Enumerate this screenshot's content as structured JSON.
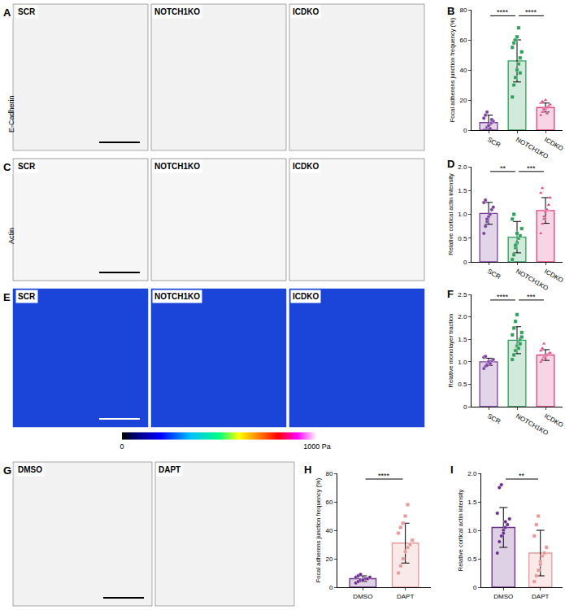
{
  "chart_data": [
    {
      "panel_label": "B",
      "type": "bar",
      "y_label": "Focal adherens junction frequency (%)",
      "categories": [
        "SCR",
        "NOTCH1KO",
        "ICDKO"
      ],
      "values": [
        5,
        46,
        15
      ],
      "errors": [
        5,
        14,
        3
      ],
      "points": [
        [
          0,
          0,
          2,
          3,
          4,
          5,
          6,
          8,
          10,
          12,
          3,
          1,
          7
        ],
        [
          22,
          30,
          35,
          40,
          44,
          48,
          52,
          55,
          58,
          60,
          62,
          68,
          38
        ],
        [
          10,
          12,
          13,
          14,
          15,
          16,
          17,
          18,
          19,
          14,
          20,
          11
        ]
      ],
      "colors": [
        "#7b3fa0",
        "#2e9e5b",
        "#e0407f"
      ],
      "ylim": [
        0,
        80
      ],
      "yticks": [
        0,
        20,
        40,
        60,
        80
      ],
      "comparisons": [
        {
          "from": 0,
          "to": 1,
          "label": "****"
        },
        {
          "from": 1,
          "to": 2,
          "label": "****"
        }
      ]
    },
    {
      "panel_label": "D",
      "type": "bar",
      "y_label": "Relative cortical actin intensity",
      "categories": [
        "SCR",
        "NOTCH1KO",
        "ICDKO"
      ],
      "values": [
        1.02,
        0.52,
        1.08
      ],
      "errors": [
        0.23,
        0.33,
        0.27
      ],
      "points": [
        [
          0.6,
          0.75,
          0.85,
          0.95,
          1.0,
          1.1,
          1.15,
          1.25,
          1.3,
          0.9
        ],
        [
          0.05,
          0.15,
          0.3,
          0.4,
          0.5,
          0.55,
          0.7,
          0.9,
          1.0,
          0.35,
          0.6
        ],
        [
          0.6,
          0.8,
          0.95,
          1.05,
          1.1,
          1.2,
          1.35,
          1.45,
          1.55,
          0.9
        ]
      ],
      "colors": [
        "#7b3fa0",
        "#2e9e5b",
        "#e0407f"
      ],
      "ylim": [
        0,
        2
      ],
      "yticks": [
        0,
        0.5,
        {
          "value": 1,
          "label": "1.0"
        },
        1.5,
        {
          "value": 2,
          "label": "2.0"
        }
      ],
      "comparisons": [
        {
          "from": 0,
          "to": 1,
          "label": "**"
        },
        {
          "from": 1,
          "to": 2,
          "label": "***"
        }
      ]
    },
    {
      "panel_label": "F",
      "type": "bar",
      "y_label": "Relative monolayer traction",
      "categories": [
        "SCR",
        "NOTCH1KO",
        "ICDKO"
      ],
      "values": [
        1.0,
        1.48,
        1.15
      ],
      "errors": [
        0.08,
        0.3,
        0.12
      ],
      "points": [
        [
          0.85,
          0.9,
          0.95,
          0.98,
          1.0,
          1.02,
          1.05,
          1.1,
          1.12,
          0.92,
          1.0,
          0.96
        ],
        [
          1.05,
          1.15,
          1.25,
          1.35,
          1.45,
          1.5,
          1.55,
          1.6,
          1.75,
          1.9,
          2.05,
          1.3,
          1.4,
          1.65
        ],
        [
          1.0,
          1.05,
          1.1,
          1.12,
          1.15,
          1.18,
          1.2,
          1.25,
          1.3,
          1.4,
          1.08
        ]
      ],
      "colors": [
        "#7b3fa0",
        "#2e9e5b",
        "#e0407f"
      ],
      "ylim": [
        0,
        2.5
      ],
      "yticks": [
        0,
        0.5,
        {
          "value": 1,
          "label": "1.0"
        },
        1.5,
        {
          "value": 2,
          "label": "2.0"
        },
        2.5
      ],
      "comparisons": [
        {
          "from": 0,
          "to": 1,
          "label": "****"
        },
        {
          "from": 1,
          "to": 2,
          "label": "***"
        }
      ]
    },
    {
      "panel_label": "H",
      "type": "bar",
      "y_label": "Focal adherens junction frequency (%)",
      "categories": [
        "DMSO",
        "DAPT"
      ],
      "values": [
        6,
        31
      ],
      "errors": [
        2,
        14
      ],
      "points": [
        [
          3,
          4,
          5,
          5,
          6,
          6,
          7,
          7,
          8,
          9,
          5
        ],
        [
          10,
          15,
          20,
          25,
          28,
          30,
          33,
          38,
          42,
          45,
          50,
          58
        ]
      ],
      "colors": [
        "#6a2a8a",
        "#e89a9a"
      ],
      "ylim": [
        0,
        80
      ],
      "yticks": [
        0,
        20,
        40,
        60,
        80
      ],
      "comparisons": [
        {
          "from": 0,
          "to": 1,
          "label": "****"
        }
      ]
    },
    {
      "panel_label": "I",
      "type": "bar",
      "y_label": "Relative cortical actin intensity",
      "categories": [
        "DMSO",
        "DAPT"
      ],
      "values": [
        1.05,
        0.6
      ],
      "errors": [
        0.35,
        0.4
      ],
      "points": [
        [
          0.6,
          0.8,
          0.9,
          1.0,
          1.05,
          1.1,
          1.2,
          1.3,
          1.75,
          1.8,
          0.95,
          1.15
        ],
        [
          0.1,
          0.2,
          0.3,
          0.45,
          0.55,
          0.6,
          0.7,
          0.9,
          1.1,
          1.25,
          0.4
        ]
      ],
      "colors": [
        "#6a2a8a",
        "#e89a9a"
      ],
      "ylim": [
        0,
        2
      ],
      "yticks": [
        0,
        0.5,
        {
          "value": 1,
          "label": "1.0"
        },
        1.5,
        {
          "value": 2,
          "label": "2.0"
        }
      ],
      "comparisons": [
        {
          "from": 0,
          "to": 1,
          "label": "**"
        }
      ]
    }
  ],
  "image_panels": [
    {
      "panel_label": "A",
      "stain": "E-Cadherin",
      "images": [
        "SCR",
        "NOTCH1KO",
        "ICDKO"
      ]
    },
    {
      "panel_label": "C",
      "stain": "Actin",
      "images": [
        "SCR",
        "NOTCH1KO",
        "ICDKO"
      ]
    },
    {
      "panel_label": "E",
      "images": [
        "SCR",
        "NOTCH1KO",
        "ICDKO"
      ],
      "colorbar": {
        "range": [
          0,
          1000
        ],
        "ticks": [
          0,
          {
            "value": 1000,
            "label": "1000 Pa"
          }
        ]
      }
    },
    {
      "panel_label": "G",
      "images": [
        "DMSO",
        "DAPT"
      ]
    }
  ]
}
